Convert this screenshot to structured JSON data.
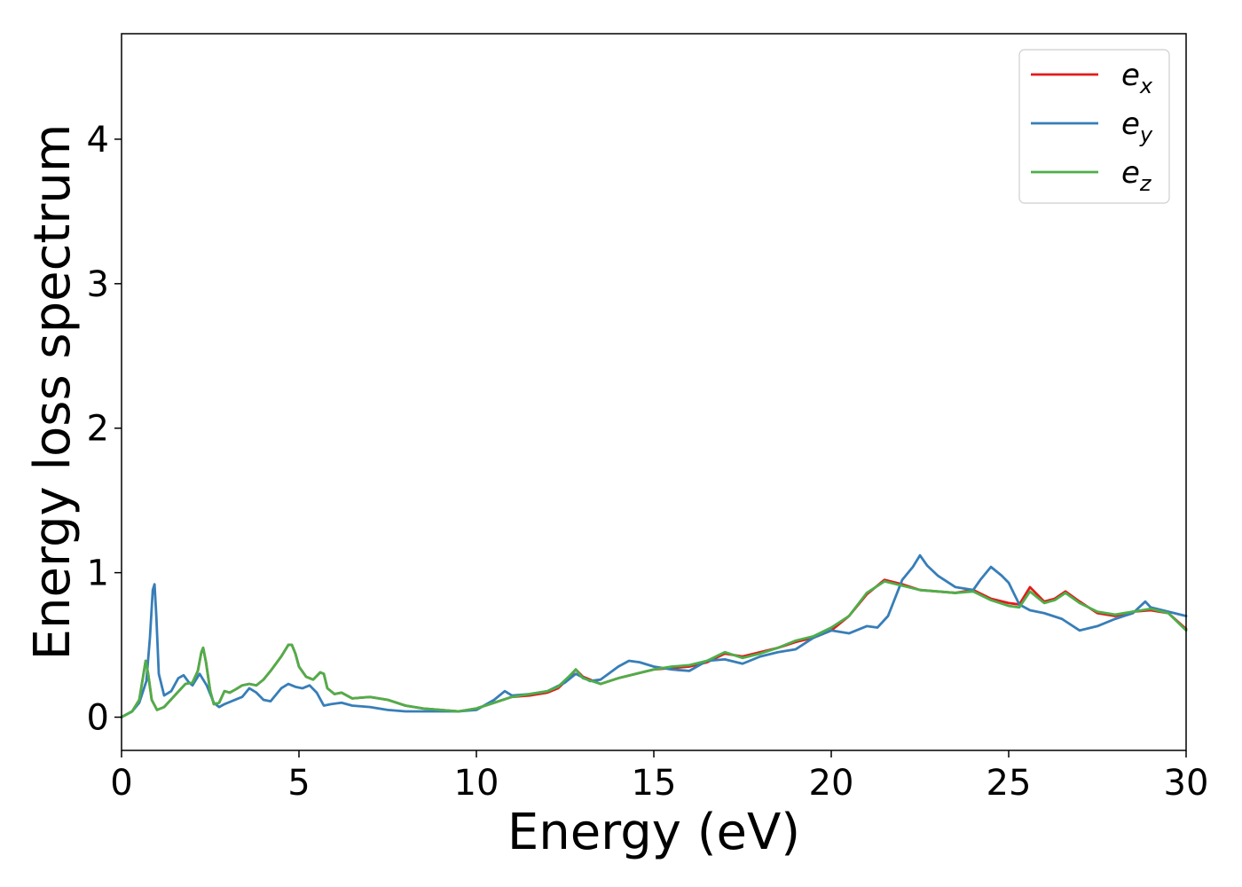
{
  "chart_data": {
    "type": "line",
    "title": "",
    "xlabel": "Energy (eV)",
    "ylabel": "Energy loss spectrum",
    "xlim": [
      0,
      30
    ],
    "ylim": [
      -0.23,
      4.73
    ],
    "xticks": [
      "0",
      "5",
      "10",
      "15",
      "20",
      "25",
      "30"
    ],
    "yticks": [
      "0",
      "1",
      "2",
      "3",
      "4"
    ],
    "grid": false,
    "legend_position": "top-right",
    "series": [
      {
        "name": "e_x",
        "label_main": "e",
        "label_sub": "x",
        "color": "#e41a1c",
        "x": [
          0,
          0.3,
          0.5,
          0.62,
          0.68,
          0.75,
          0.85,
          1.0,
          1.2,
          1.5,
          1.8,
          2.0,
          2.15,
          2.25,
          2.3,
          2.38,
          2.5,
          2.6,
          2.75,
          2.9,
          3.05,
          3.2,
          3.4,
          3.6,
          3.8,
          4.0,
          4.2,
          4.5,
          4.7,
          4.8,
          4.9,
          5.0,
          5.2,
          5.4,
          5.6,
          5.7,
          5.8,
          6.0,
          6.2,
          6.5,
          7.0,
          7.5,
          8.0,
          8.5,
          9.0,
          9.5,
          10.0,
          10.5,
          11.0,
          11.5,
          12.0,
          12.3,
          12.6,
          12.8,
          13.0,
          13.5,
          14.0,
          14.5,
          15.0,
          15.5,
          16.0,
          16.5,
          17.0,
          17.5,
          18.0,
          18.5,
          19.0,
          19.5,
          20.0,
          20.5,
          21.0,
          21.5,
          22.0,
          22.5,
          23.0,
          23.5,
          24.0,
          24.5,
          25.0,
          25.3,
          25.6,
          25.8,
          26.0,
          26.3,
          26.6,
          27.0,
          27.5,
          28.0,
          28.5,
          29.0,
          29.5,
          30.0
        ],
        "y": [
          0.0,
          0.04,
          0.12,
          0.3,
          0.39,
          0.3,
          0.12,
          0.05,
          0.07,
          0.15,
          0.23,
          0.24,
          0.32,
          0.45,
          0.48,
          0.38,
          0.18,
          0.09,
          0.1,
          0.18,
          0.17,
          0.19,
          0.22,
          0.23,
          0.22,
          0.26,
          0.32,
          0.42,
          0.5,
          0.5,
          0.44,
          0.35,
          0.28,
          0.26,
          0.31,
          0.3,
          0.2,
          0.16,
          0.17,
          0.13,
          0.14,
          0.12,
          0.08,
          0.06,
          0.05,
          0.04,
          0.06,
          0.1,
          0.14,
          0.15,
          0.17,
          0.2,
          0.27,
          0.33,
          0.28,
          0.23,
          0.27,
          0.3,
          0.33,
          0.34,
          0.35,
          0.38,
          0.44,
          0.42,
          0.45,
          0.48,
          0.52,
          0.55,
          0.6,
          0.7,
          0.85,
          0.95,
          0.92,
          0.88,
          0.87,
          0.86,
          0.88,
          0.82,
          0.79,
          0.78,
          0.9,
          0.85,
          0.8,
          0.82,
          0.87,
          0.8,
          0.72,
          0.7,
          0.73,
          0.74,
          0.72,
          0.61
        ]
      },
      {
        "name": "e_y",
        "label_main": "e",
        "label_sub": "y",
        "color": "#377eb8",
        "x": [
          0,
          0.3,
          0.5,
          0.7,
          0.8,
          0.88,
          0.93,
          0.98,
          1.05,
          1.2,
          1.4,
          1.6,
          1.75,
          1.9,
          2.0,
          2.2,
          2.4,
          2.6,
          2.75,
          2.9,
          3.0,
          3.2,
          3.4,
          3.6,
          3.8,
          4.0,
          4.2,
          4.5,
          4.7,
          4.9,
          5.1,
          5.3,
          5.5,
          5.7,
          5.9,
          6.2,
          6.5,
          7.0,
          7.5,
          8.0,
          8.5,
          9.0,
          9.5,
          10.0,
          10.5,
          10.8,
          11.0,
          11.5,
          12.0,
          12.5,
          12.8,
          13.2,
          13.5,
          14.0,
          14.3,
          14.6,
          15.0,
          15.5,
          16.0,
          16.5,
          17.0,
          17.5,
          18.0,
          18.5,
          19.0,
          19.5,
          20.0,
          20.5,
          21.0,
          21.3,
          21.6,
          22.0,
          22.3,
          22.5,
          22.7,
          23.0,
          23.5,
          24.0,
          24.2,
          24.5,
          24.8,
          25.0,
          25.3,
          25.6,
          26.0,
          26.5,
          27.0,
          27.5,
          28.0,
          28.5,
          28.85,
          29.0,
          29.5,
          30.0
        ],
        "y": [
          0.0,
          0.04,
          0.1,
          0.25,
          0.55,
          0.88,
          0.92,
          0.7,
          0.3,
          0.15,
          0.18,
          0.27,
          0.29,
          0.24,
          0.22,
          0.3,
          0.22,
          0.1,
          0.07,
          0.09,
          0.1,
          0.12,
          0.14,
          0.2,
          0.17,
          0.12,
          0.11,
          0.2,
          0.23,
          0.21,
          0.2,
          0.22,
          0.17,
          0.08,
          0.09,
          0.1,
          0.08,
          0.07,
          0.05,
          0.04,
          0.04,
          0.04,
          0.04,
          0.05,
          0.12,
          0.18,
          0.15,
          0.16,
          0.18,
          0.24,
          0.3,
          0.25,
          0.26,
          0.35,
          0.39,
          0.38,
          0.35,
          0.33,
          0.32,
          0.39,
          0.4,
          0.37,
          0.42,
          0.45,
          0.47,
          0.55,
          0.6,
          0.58,
          0.63,
          0.62,
          0.7,
          0.95,
          1.04,
          1.12,
          1.05,
          0.98,
          0.9,
          0.88,
          0.95,
          1.04,
          0.98,
          0.93,
          0.78,
          0.74,
          0.72,
          0.68,
          0.6,
          0.63,
          0.68,
          0.72,
          0.8,
          0.76,
          0.73,
          0.7
        ]
      },
      {
        "name": "e_z",
        "label_main": "e",
        "label_sub": "z",
        "color": "#4daf4a",
        "x": [
          0,
          0.3,
          0.5,
          0.62,
          0.68,
          0.75,
          0.85,
          1.0,
          1.2,
          1.5,
          1.8,
          2.0,
          2.15,
          2.25,
          2.3,
          2.38,
          2.5,
          2.6,
          2.75,
          2.9,
          3.05,
          3.2,
          3.4,
          3.6,
          3.8,
          4.0,
          4.2,
          4.5,
          4.7,
          4.8,
          4.9,
          5.0,
          5.2,
          5.4,
          5.6,
          5.7,
          5.8,
          6.0,
          6.2,
          6.5,
          7.0,
          7.5,
          8.0,
          8.5,
          9.0,
          9.5,
          10.0,
          10.5,
          11.0,
          11.5,
          12.0,
          12.3,
          12.6,
          12.8,
          13.0,
          13.5,
          14.0,
          14.5,
          15.0,
          15.5,
          16.0,
          16.5,
          17.0,
          17.5,
          18.0,
          18.5,
          19.0,
          19.5,
          20.0,
          20.5,
          21.0,
          21.5,
          22.0,
          22.5,
          23.0,
          23.5,
          24.0,
          24.5,
          25.0,
          25.3,
          25.6,
          25.8,
          26.0,
          26.3,
          26.6,
          27.0,
          27.5,
          28.0,
          28.5,
          29.0,
          29.5,
          30.0
        ],
        "y": [
          0.0,
          0.04,
          0.12,
          0.3,
          0.39,
          0.3,
          0.12,
          0.05,
          0.07,
          0.15,
          0.23,
          0.24,
          0.32,
          0.45,
          0.48,
          0.38,
          0.18,
          0.09,
          0.1,
          0.18,
          0.17,
          0.19,
          0.22,
          0.23,
          0.22,
          0.26,
          0.32,
          0.42,
          0.5,
          0.5,
          0.44,
          0.35,
          0.28,
          0.26,
          0.31,
          0.3,
          0.2,
          0.16,
          0.17,
          0.13,
          0.14,
          0.12,
          0.08,
          0.06,
          0.05,
          0.04,
          0.06,
          0.1,
          0.14,
          0.16,
          0.18,
          0.21,
          0.28,
          0.33,
          0.27,
          0.23,
          0.27,
          0.3,
          0.33,
          0.35,
          0.36,
          0.39,
          0.45,
          0.41,
          0.44,
          0.48,
          0.53,
          0.56,
          0.62,
          0.7,
          0.86,
          0.94,
          0.91,
          0.88,
          0.87,
          0.86,
          0.87,
          0.81,
          0.77,
          0.76,
          0.87,
          0.83,
          0.79,
          0.81,
          0.86,
          0.79,
          0.73,
          0.71,
          0.73,
          0.75,
          0.72,
          0.6
        ]
      }
    ]
  }
}
